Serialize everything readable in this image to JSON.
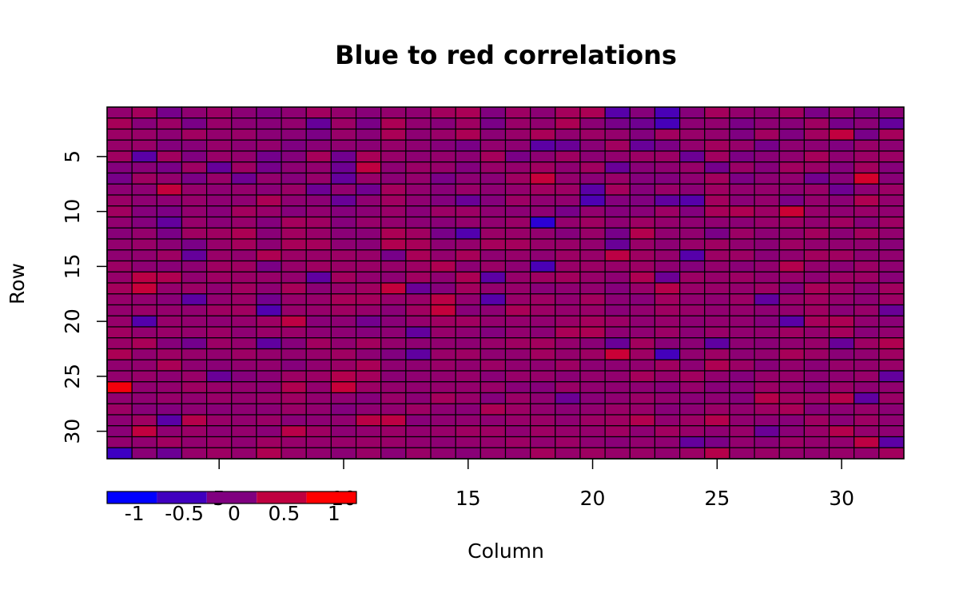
{
  "chart_data": {
    "type": "heatmap",
    "title": "Blue to red correlations",
    "xlabel": "Column",
    "ylabel": "Row",
    "nrows": 32,
    "ncols": 32,
    "xlim": [
      0.5,
      32.5
    ],
    "ylim": [
      32.5,
      0.5
    ],
    "x_ticks": [
      5,
      10,
      15,
      20,
      25,
      30
    ],
    "y_ticks": [
      5,
      10,
      15,
      20,
      25,
      30
    ],
    "x_tick_labels": [
      "5",
      "10",
      "15",
      "20",
      "25",
      "30"
    ],
    "y_tick_labels": [
      "5",
      "10",
      "15",
      "20",
      "25",
      "30"
    ],
    "color_scale": {
      "low": "#0000FF",
      "mid": "#800080",
      "high": "#FF0000",
      "range": [
        -1,
        1
      ]
    },
    "cell_border_color": "#000000",
    "legend": {
      "position": "bottom-left",
      "colors": [
        "#0000FF",
        "#4000BF",
        "#800080",
        "#BF0040",
        "#FF0000"
      ],
      "labels": [
        "-1",
        "-0.5",
        "0",
        "0.5",
        "1"
      ]
    },
    "values": [
      [
        0.14,
        0.28,
        -0.08,
        0.12,
        0.21,
        0.09,
        -0.01,
        0.11,
        0.26,
        0.16,
        0.06,
        0.15,
        0.12,
        0.27,
        0.33,
        0.01,
        0.23,
        0.09,
        0.29,
        0.34,
        -0.32,
        0.05,
        -0.43,
        0.05,
        0.28,
        0.15,
        0.11,
        0.26,
        -0.04,
        0.18,
        -0.02,
        0.09
      ],
      [
        0.31,
        0.06,
        0.21,
        -0.05,
        0.18,
        0.09,
        0.06,
        0.14,
        -0.2,
        0.21,
        -0.05,
        0.34,
        0.13,
        0.06,
        0.24,
        -0.05,
        0.19,
        0.13,
        0.35,
        0.09,
        -0.06,
        -0.13,
        -0.45,
        0.1,
        0.14,
        -0.04,
        0.1,
        0.06,
        0.24,
        -0.06,
        0.08,
        -0.21
      ],
      [
        0.21,
        0.19,
        0.1,
        0.25,
        0.15,
        0.19,
        0.08,
        0.08,
        -0.04,
        0.18,
        0.07,
        0.33,
        0.1,
        0.19,
        0.34,
        0.09,
        0.18,
        0.32,
        0.13,
        0.21,
        0.16,
        0.02,
        0.26,
        0.18,
        0.15,
        -0.01,
        0.26,
        0.0,
        0.26,
        0.51,
        -0.06,
        0.29
      ],
      [
        0.18,
        0.19,
        0.03,
        0.06,
        0.17,
        0.1,
        0.15,
        -0.01,
        0.08,
        0.12,
        0.09,
        0.17,
        0.12,
        0.05,
        -0.05,
        0.14,
        0.11,
        -0.28,
        -0.17,
        0.08,
        0.26,
        -0.19,
        -0.03,
        0.15,
        0.27,
        0.17,
        -0.07,
        0.12,
        0.1,
        0.01,
        0.19,
        0.1
      ],
      [
        0.25,
        -0.3,
        0.26,
        0.01,
        0.19,
        0.15,
        -0.09,
        0.04,
        0.3,
        -0.12,
        0.32,
        0.18,
        0.11,
        0.16,
        0.1,
        0.29,
        -0.05,
        0.11,
        0.24,
        0.1,
        0.14,
        0.21,
        0.21,
        -0.16,
        0.26,
        -0.02,
        0.08,
        0.13,
        0.3,
        0.12,
        0.21,
        0.21
      ],
      [
        0.03,
        0.07,
        -0.05,
        0.23,
        -0.2,
        0.23,
        -0.08,
        0.1,
        0.14,
        -0.14,
        0.5,
        0.11,
        0.2,
        0.17,
        0.02,
        0.19,
        0.16,
        0.25,
        0.12,
        0.25,
        -0.18,
        0.07,
        0.12,
        0.18,
        -0.09,
        0.2,
        0.05,
        0.26,
        0.2,
        0.04,
        0.27,
        0.05
      ],
      [
        -0.07,
        0.24,
        0.15,
        -0.04,
        0.18,
        -0.13,
        0.15,
        0.05,
        0.17,
        -0.21,
        0.18,
        0.09,
        0.16,
        -0.05,
        0.1,
        0.08,
        0.24,
        0.54,
        0.16,
        0.08,
        0.19,
        0.04,
        0.02,
        0.12,
        0.27,
        -0.02,
        0.1,
        0.13,
        -0.11,
        0.06,
        0.66,
        0.07
      ],
      [
        0.1,
        0.11,
        0.53,
        0.17,
        0.11,
        0.16,
        0.08,
        0.2,
        -0.15,
        0.13,
        -0.12,
        0.28,
        0.14,
        0.07,
        0.19,
        0.11,
        0.15,
        0.25,
        0.22,
        -0.29,
        0.28,
        0.05,
        0.19,
        0.09,
        0.24,
        0.14,
        0.16,
        0.11,
        0.19,
        -0.13,
        0.1,
        0.21
      ],
      [
        0.2,
        0.11,
        0.1,
        0.17,
        0.11,
        0.12,
        0.34,
        0.12,
        0.09,
        -0.18,
        0.12,
        0.25,
        0.12,
        0.02,
        -0.17,
        0.04,
        0.22,
        0.12,
        0.13,
        -0.39,
        0.03,
        0.01,
        -0.24,
        -0.33,
        0.27,
        0.08,
        0.16,
        -0.04,
        0.16,
        0.09,
        0.37,
        0.15
      ],
      [
        0.26,
        0.04,
        -0.03,
        0.14,
        0.06,
        0.27,
        0.18,
        0.05,
        0.13,
        0.04,
        0.09,
        0.19,
        0.07,
        0.21,
        0.22,
        0.12,
        0.09,
        0.1,
        -0.06,
        0.14,
        0.04,
        0.07,
        0.22,
        0.02,
        0.31,
        0.36,
        0.22,
        0.59,
        0.17,
        0.12,
        0.19,
        0.13
      ],
      [
        0.13,
        0.03,
        -0.23,
        0.17,
        0.08,
        0.17,
        0.03,
        0.28,
        0.24,
        0.04,
        0.17,
        0.15,
        0.09,
        0.07,
        0.15,
        0.13,
        0.2,
        -0.66,
        0.15,
        0.24,
        0.11,
        0.23,
        0.16,
        0.12,
        0.12,
        0.09,
        0.17,
        0.23,
        0.13,
        0.25,
        0.07,
        0.23
      ],
      [
        0.06,
        0.16,
        -0.05,
        0.24,
        0.24,
        0.35,
        0.07,
        0.26,
        0.19,
        0.08,
        0.08,
        0.34,
        0.25,
        -0.06,
        -0.36,
        0.2,
        0.19,
        0.14,
        0.04,
        0.19,
        -0.07,
        0.4,
        0.13,
        0.13,
        -0.05,
        0.21,
        0.1,
        0.14,
        0.27,
        0.09,
        0.27,
        0.14
      ],
      [
        0.14,
        0.19,
        0.09,
        -0.05,
        0.17,
        0.28,
        0.1,
        0.31,
        0.29,
        0.11,
        0.08,
        0.38,
        0.31,
        0.11,
        0.16,
        0.29,
        0.28,
        0.18,
        0.19,
        0.14,
        -0.18,
        0.19,
        0.1,
        0.18,
        0.24,
        0.13,
        0.09,
        0.23,
        0.14,
        0.13,
        0.13,
        0.07
      ],
      [
        0.12,
        0.13,
        0.23,
        -0.21,
        0.19,
        0.14,
        0.36,
        0.21,
        0.19,
        0.21,
        0.18,
        -0.07,
        0.32,
        0.15,
        0.31,
        0.12,
        0.17,
        0.11,
        0.22,
        0.18,
        0.47,
        0.24,
        0.16,
        -0.33,
        0.22,
        0.22,
        0.08,
        0.13,
        0.27,
        0.25,
        0.12,
        0.13
      ],
      [
        0.22,
        0.11,
        0.08,
        0.11,
        0.24,
        0.24,
        -0.04,
        0.18,
        0.24,
        0.2,
        0.2,
        0.18,
        0.23,
        0.37,
        0.1,
        0.2,
        0.11,
        -0.42,
        0.19,
        0.21,
        0.18,
        0.22,
        0.12,
        0.04,
        0.16,
        0.08,
        0.14,
        0.4,
        0.16,
        0.09,
        0.21,
        0.12
      ],
      [
        0.17,
        0.46,
        0.37,
        0.13,
        0.23,
        0.2,
        0.18,
        0.15,
        -0.25,
        0.27,
        0.14,
        0.11,
        0.25,
        0.12,
        0.34,
        -0.28,
        0.17,
        0.24,
        0.27,
        0.18,
        0.11,
        0.36,
        -0.16,
        0.22,
        0.17,
        0.22,
        0.13,
        0.17,
        0.11,
        0.22,
        0.22,
        0.07
      ],
      [
        0.28,
        0.55,
        0.16,
        0.21,
        0.12,
        0.26,
        0.11,
        0.31,
        0.09,
        0.17,
        0.25,
        0.53,
        -0.17,
        0.05,
        0.27,
        0.15,
        0.17,
        0.07,
        0.12,
        0.14,
        0.04,
        0.18,
        0.42,
        0.19,
        0.19,
        0.16,
        0.22,
        0.03,
        0.32,
        0.23,
        0.1,
        0.26
      ],
      [
        0.17,
        0.14,
        0.07,
        -0.27,
        0.13,
        0.2,
        -0.1,
        0.17,
        0.17,
        0.31,
        0.28,
        0.17,
        0.19,
        0.46,
        0.14,
        -0.32,
        0.18,
        0.23,
        0.13,
        0.27,
        0.09,
        0.06,
        0.26,
        0.13,
        0.12,
        0.21,
        -0.24,
        0.18,
        0.25,
        0.16,
        0.1,
        0.22
      ],
      [
        0.15,
        0.19,
        0.16,
        0.13,
        0.24,
        0.25,
        -0.37,
        0.17,
        0.17,
        0.24,
        0.17,
        0.08,
        0.25,
        0.53,
        0.06,
        0.1,
        0.33,
        0.21,
        0.16,
        0.19,
        0.07,
        0.14,
        0.24,
        0.18,
        0.13,
        0.16,
        0.11,
        0.15,
        0.24,
        0.08,
        0.18,
        -0.18
      ],
      [
        0.17,
        -0.34,
        0.17,
        0.14,
        0.11,
        0.16,
        0.23,
        0.48,
        0.07,
        0.1,
        -0.1,
        0.07,
        0.16,
        0.24,
        0.25,
        0.15,
        0.16,
        0.13,
        0.2,
        0.28,
        0.21,
        0.12,
        0.17,
        0.1,
        0.14,
        0.13,
        0.05,
        -0.3,
        0.3,
        0.35,
        0.13,
        0.08
      ],
      [
        0.25,
        0.14,
        0.19,
        0.16,
        0.21,
        0.11,
        0.19,
        0.19,
        0.1,
        0.1,
        0.05,
        0.1,
        -0.23,
        0.17,
        0.12,
        0.02,
        0.14,
        0.09,
        0.33,
        0.35,
        0.11,
        0.12,
        0.21,
        0.09,
        0.19,
        0.13,
        0.14,
        0.24,
        0.16,
        0.29,
        0.07,
        0.14
      ],
      [
        0.2,
        0.32,
        0.05,
        -0.1,
        0.21,
        0.16,
        -0.25,
        0.05,
        0.26,
        0.13,
        0.27,
        0.16,
        0.11,
        0.13,
        0.11,
        0.18,
        0.24,
        0.27,
        0.16,
        0.08,
        -0.18,
        0.27,
        0.07,
        0.09,
        -0.26,
        0.11,
        0.08,
        0.13,
        0.18,
        -0.19,
        0.23,
        0.38
      ],
      [
        0.34,
        0.13,
        0.22,
        0.17,
        0.14,
        0.22,
        0.16,
        0.14,
        0.17,
        0.24,
        0.1,
        0.01,
        -0.25,
        0.19,
        0.23,
        0.12,
        0.13,
        0.26,
        0.16,
        0.23,
        0.58,
        0.23,
        -0.47,
        0.13,
        0.22,
        0.1,
        0.14,
        0.31,
        0.21,
        0.08,
        0.13,
        0.24
      ],
      [
        0.13,
        0.14,
        0.33,
        0.12,
        0.08,
        0.13,
        0.14,
        0.04,
        0.13,
        0.2,
        0.32,
        0.12,
        0.12,
        0.19,
        0.13,
        0.21,
        0.13,
        0.12,
        0.23,
        0.1,
        0.11,
        0.13,
        0.25,
        0.1,
        0.36,
        0.21,
        0.06,
        0.15,
        0.08,
        0.17,
        0.15,
        0.19
      ],
      [
        0.15,
        0.18,
        0.11,
        0.19,
        -0.18,
        0.04,
        0.09,
        0.23,
        0.21,
        0.4,
        0.28,
        0.09,
        0.12,
        0.14,
        0.17,
        0.08,
        0.18,
        0.17,
        0.09,
        0.16,
        0.14,
        0.29,
        0.17,
        0.26,
        0.14,
        0.04,
        0.17,
        0.17,
        0.1,
        0.12,
        0.18,
        -0.23
      ],
      [
        0.91,
        0.13,
        0.15,
        0.24,
        0.18,
        0.15,
        0.11,
        0.38,
        0.15,
        0.55,
        0.22,
        0.16,
        0.13,
        0.16,
        0.16,
        0.19,
        0.07,
        0.05,
        0.2,
        0.13,
        0.12,
        0.11,
        0.06,
        0.17,
        0.06,
        0.08,
        0.21,
        0.13,
        0.06,
        0.2,
        0.11,
        0.13
      ],
      [
        0.13,
        0.12,
        0.17,
        0.13,
        0.19,
        0.15,
        0.17,
        0.24,
        0.14,
        0.12,
        0.05,
        0.19,
        0.09,
        0.28,
        0.18,
        0.04,
        0.2,
        0.12,
        -0.16,
        0.07,
        0.12,
        0.2,
        0.14,
        0.08,
        0.11,
        0.05,
        0.42,
        0.25,
        0.21,
        0.42,
        -0.25,
        0.2
      ],
      [
        0.22,
        0.06,
        0.02,
        0.11,
        0.07,
        0.11,
        0.09,
        0.2,
        0.14,
        0.02,
        0.12,
        0.13,
        0.23,
        0.11,
        0.08,
        0.35,
        0.22,
        0.14,
        0.09,
        0.13,
        0.2,
        0.18,
        0.06,
        0.1,
        0.2,
        0.14,
        0.23,
        0.32,
        0.06,
        0.1,
        0.17,
        0.09
      ],
      [
        0.1,
        0.24,
        -0.3,
        0.42,
        0.19,
        0.14,
        0.2,
        0.07,
        0.1,
        0.13,
        0.46,
        0.48,
        0.06,
        0.12,
        0.13,
        0.11,
        0.18,
        0.2,
        0.12,
        0.22,
        0.24,
        0.39,
        0.13,
        0.22,
        0.41,
        0.13,
        0.1,
        0.06,
        0.24,
        0.08,
        0.23,
        0.12
      ],
      [
        0.08,
        0.51,
        0.12,
        0.2,
        0.1,
        0.16,
        0.08,
        0.44,
        0.24,
        0.1,
        0.14,
        0.2,
        0.14,
        0.18,
        0.24,
        0.23,
        0.12,
        0.23,
        0.17,
        0.16,
        0.24,
        0.11,
        0.26,
        0.18,
        0.12,
        0.18,
        -0.17,
        0.08,
        0.19,
        0.41,
        0.16,
        0.11
      ],
      [
        0.14,
        0.13,
        0.25,
        0.14,
        0.19,
        0.12,
        0.24,
        0.17,
        0.16,
        0.18,
        0.2,
        0.19,
        0.13,
        0.1,
        0.15,
        0.16,
        0.22,
        0.13,
        0.21,
        0.12,
        0.07,
        0.14,
        0.12,
        -0.22,
        -0.04,
        0.14,
        0.08,
        0.21,
        0.15,
        0.14,
        0.48,
        -0.28
      ],
      [
        -0.52,
        0.08,
        -0.16,
        0.17,
        0.23,
        0.16,
        0.37,
        0.18,
        0.14,
        0.09,
        0.2,
        0.08,
        0.2,
        0.13,
        0.07,
        0.16,
        0.13,
        0.28,
        0.17,
        0.24,
        0.18,
        0.2,
        0.14,
        0.21,
        0.42,
        0.16,
        0.2,
        0.16,
        0.13,
        0.18,
        0.16,
        0.27
      ]
    ]
  }
}
